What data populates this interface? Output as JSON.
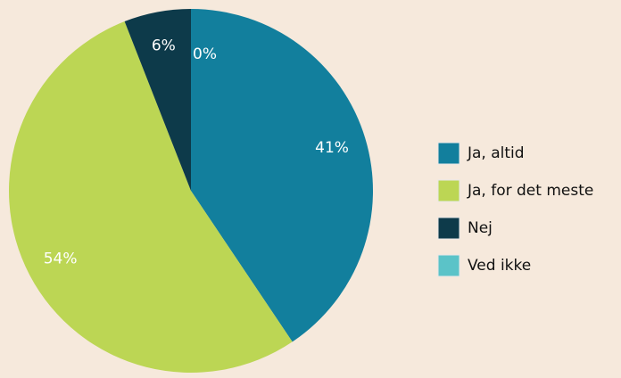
{
  "chart_data": {
    "type": "pie",
    "categories": [
      "Ja, altid",
      "Ja, for det meste",
      "Nej",
      "Ved ikke"
    ],
    "values": [
      41,
      54,
      6,
      0
    ],
    "value_labels": [
      "41%",
      "54%",
      "6%",
      "0%"
    ],
    "colors": [
      "#127f9d",
      "#bcd654",
      "#0d3a4a",
      "#5bc3c8"
    ],
    "legend": "right"
  }
}
